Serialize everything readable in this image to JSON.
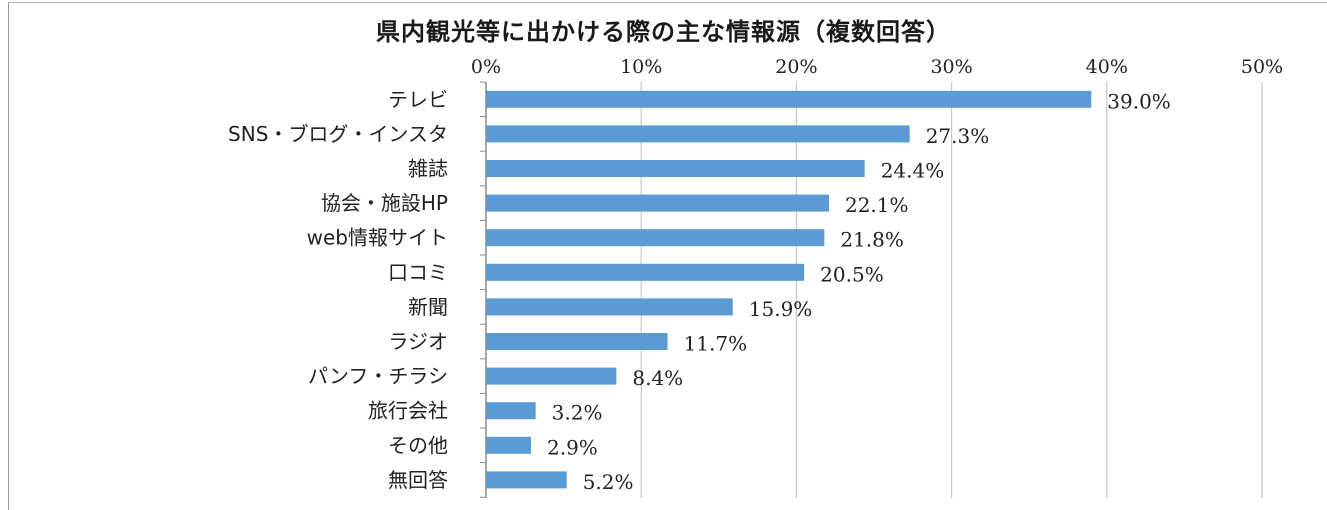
{
  "chart_data": {
    "type": "bar",
    "orientation": "horizontal",
    "title": "県内観光等に出かける際の主な情報源（複数回答）",
    "categories": [
      "テレビ",
      "SNS・ブログ・インスタ",
      "雑誌",
      "協会・施設HP",
      "web情報サイト",
      "口コミ",
      "新聞",
      "ラジオ",
      "パンフ・チラシ",
      "旅行会社",
      "その他",
      "無回答"
    ],
    "values": [
      39.0,
      27.3,
      24.4,
      22.1,
      21.8,
      20.5,
      15.9,
      11.7,
      8.4,
      3.2,
      2.9,
      5.2
    ],
    "value_labels": [
      "39.0%",
      "27.3%",
      "24.4%",
      "22.1%",
      "21.8%",
      "20.5%",
      "15.9%",
      "11.7%",
      "8.4%",
      "3.2%",
      "2.9%",
      "5.2%"
    ],
    "xticks": [
      "0%",
      "10%",
      "20%",
      "30%",
      "40%",
      "50%"
    ],
    "xlim": [
      0,
      50
    ],
    "grid": true,
    "xaxis_position": "top",
    "bar_color": "#5b9bd5"
  }
}
